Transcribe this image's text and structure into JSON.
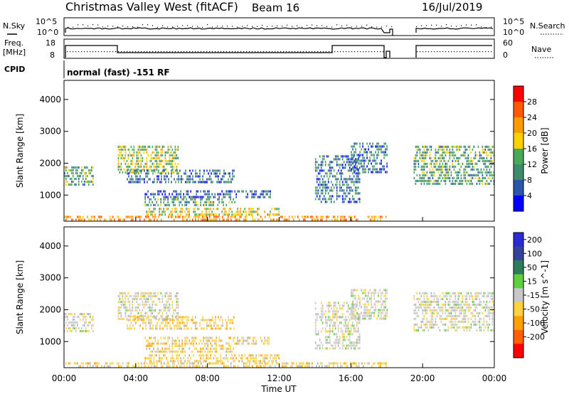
{
  "header": {
    "title": "Christmas Valley West (fitACF)",
    "beam": "Beam 16",
    "date": "16/Jul/2019"
  },
  "panel_labels": {
    "nsky": "N.Sky",
    "nsearch": "N.Search",
    "freq_line1": "Freq.",
    "freq_line2": "[MHz]",
    "nave": "Nave",
    "cpid": "CPID",
    "cpid_text": "normal (fast) -151 RF"
  },
  "noise_axis": {
    "left_ticks": [
      "10^5",
      "10^0"
    ],
    "right_ticks": [
      "10^5",
      "10^0"
    ]
  },
  "freq_axis": {
    "left_ticks": [
      "18",
      "8"
    ],
    "right_ticks": [
      "60",
      "0"
    ]
  },
  "xaxis": {
    "label": "Time UT",
    "ticks": [
      "00:00",
      "04:00",
      "08:00",
      "12:00",
      "16:00",
      "20:00",
      "00:00"
    ]
  },
  "colors": {
    "power_scale": [
      "#0000ff",
      "#2a55a8",
      "#3f8a6a",
      "#4aa85a",
      "#ffd000",
      "#ff9a00",
      "#ff5a00",
      "#ff0000"
    ],
    "velocity_scale": [
      "#2b2bd6",
      "#33449a",
      "#2e7d5a",
      "#5fcf3f",
      "#c8c8c8",
      "#ffd040",
      "#ffa000",
      "#ff6000",
      "#ff0000"
    ],
    "ground_scatter": "#b0b0b0"
  },
  "chart_data": [
    {
      "type": "heatmap",
      "title": "",
      "ylabel": "Slant Range [km]",
      "xlabel": "",
      "x_range_hours": [
        0,
        24
      ],
      "ylim": [
        180,
        4600
      ],
      "yticks": [
        1000,
        2000,
        3000,
        4000
      ],
      "colorbar": {
        "label": "Power [dB]",
        "range": [
          0,
          32
        ],
        "ticks": [
          4,
          8,
          12,
          16,
          20,
          24,
          28
        ]
      },
      "regions": [
        {
          "x": [
            0.0,
            1.6
          ],
          "y": [
            1350,
            1900
          ],
          "value": 12
        },
        {
          "x": [
            3.0,
            6.4
          ],
          "y": [
            1700,
            2550
          ],
          "value": 16
        },
        {
          "x": [
            3.5,
            9.5
          ],
          "y": [
            1400,
            1800
          ],
          "value": 8
        },
        {
          "x": [
            4.5,
            11.5
          ],
          "y": [
            900,
            1150
          ],
          "value": 6
        },
        {
          "x": [
            4.5,
            9.5
          ],
          "y": [
            650,
            900
          ],
          "value": 12
        },
        {
          "x": [
            4.5,
            12.0
          ],
          "y": [
            350,
            600
          ],
          "value": 18
        },
        {
          "x": [
            0.0,
            18.0
          ],
          "y": [
            180,
            350
          ],
          "value": 22
        },
        {
          "x": [
            14.0,
            16.5
          ],
          "y": [
            800,
            2250
          ],
          "value": 8
        },
        {
          "x": [
            16.0,
            18.0
          ],
          "y": [
            1700,
            2650
          ],
          "value": 8
        },
        {
          "x": [
            19.5,
            24.0
          ],
          "y": [
            1300,
            2550
          ],
          "value": 12
        }
      ]
    },
    {
      "type": "heatmap",
      "title": "",
      "ylabel": "Slant Range [km]",
      "xlabel": "Time UT",
      "x_range_hours": [
        0,
        24
      ],
      "ylim": [
        180,
        4600
      ],
      "yticks": [
        1000,
        2000,
        3000,
        4000
      ],
      "colorbar": {
        "label": "Velocity [m s^-1]",
        "ticks": [
          200,
          100,
          50,
          15,
          -15,
          -50,
          -100,
          -200
        ]
      },
      "regions": [
        {
          "x": [
            0.0,
            1.6
          ],
          "y": [
            1350,
            1900
          ],
          "value": 0
        },
        {
          "x": [
            3.0,
            6.4
          ],
          "y": [
            1700,
            2550
          ],
          "value": 0
        },
        {
          "x": [
            3.5,
            9.5
          ],
          "y": [
            1400,
            1800
          ],
          "value": -30
        },
        {
          "x": [
            4.5,
            11.5
          ],
          "y": [
            900,
            1150
          ],
          "value": -30
        },
        {
          "x": [
            4.5,
            9.5
          ],
          "y": [
            650,
            900
          ],
          "value": -30
        },
        {
          "x": [
            4.5,
            12.0
          ],
          "y": [
            350,
            600
          ],
          "value": -30
        },
        {
          "x": [
            0.0,
            18.0
          ],
          "y": [
            180,
            350
          ],
          "value": -30
        },
        {
          "x": [
            14.0,
            16.5
          ],
          "y": [
            800,
            2250
          ],
          "value": 0
        },
        {
          "x": [
            16.0,
            18.0
          ],
          "y": [
            1700,
            2650
          ],
          "value": 0
        },
        {
          "x": [
            19.5,
            24.0
          ],
          "y": [
            1300,
            2550
          ],
          "value": 0
        }
      ]
    }
  ]
}
